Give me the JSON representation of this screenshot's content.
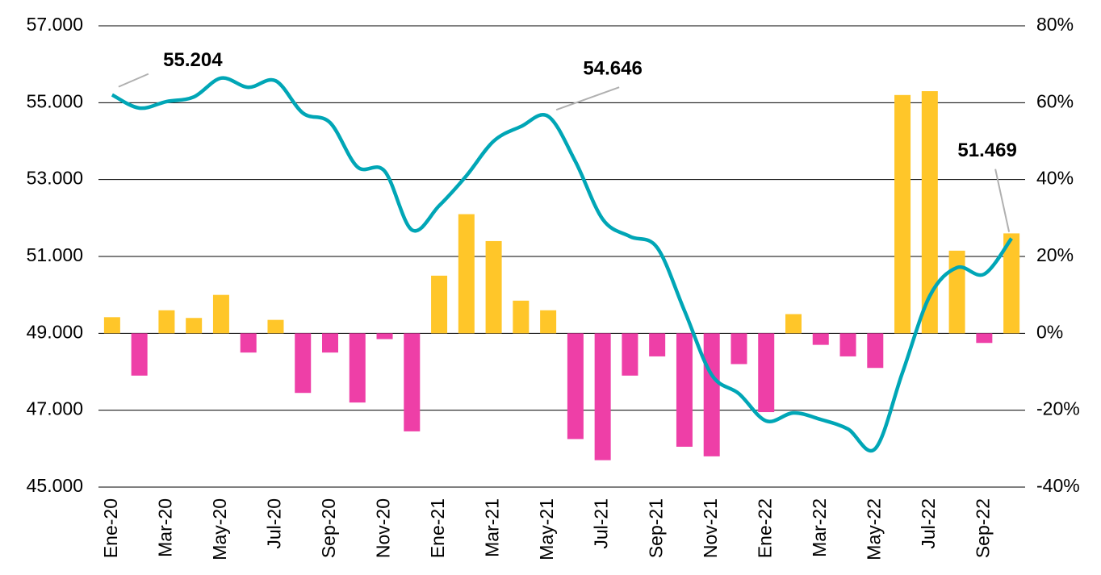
{
  "chart_data": {
    "type": "bar-line",
    "categories": [
      "Ene-20",
      null,
      "Mar-20",
      null,
      "May-20",
      null,
      "Jul-20",
      null,
      "Sep-20",
      null,
      "Nov-20",
      null,
      "Ene-21",
      null,
      "Mar-21",
      null,
      "May-21",
      null,
      "Jul-21",
      null,
      "Sep-21",
      null,
      "Nov-21",
      null,
      "Ene-22",
      null,
      "Mar-22",
      null,
      "May-22",
      null,
      "Jul-22",
      null,
      "Sep-22",
      null
    ],
    "series": [
      {
        "type": "bar",
        "axis": "y2",
        "positive_color": "#FFC629",
        "negative_color": "#EE3FA7",
        "values": [
          4.2,
          -11,
          6,
          4,
          10,
          -5,
          3.5,
          -15.5,
          -5,
          -18,
          -1.5,
          -25.5,
          15,
          31,
          24,
          8.5,
          6,
          -27.5,
          -33,
          -11,
          -6,
          -29.5,
          -32,
          -8,
          -20.5,
          5,
          -3,
          -6,
          -9,
          62,
          63,
          21.5,
          -2.5,
          26
        ]
      },
      {
        "type": "line",
        "axis": "y",
        "color": "#00A6B6",
        "values": [
          55204,
          54860,
          55030,
          55150,
          55640,
          55400,
          55570,
          54730,
          54480,
          53330,
          53220,
          51690,
          52320,
          53100,
          54000,
          54380,
          54646,
          53470,
          51970,
          51520,
          51230,
          49590,
          47920,
          47430,
          46720,
          46930,
          46760,
          46510,
          46000,
          47980,
          49970,
          50710,
          50540,
          51469
        ],
        "value_labels": [
          "55.204",
          null,
          null,
          null,
          null,
          null,
          null,
          null,
          null,
          null,
          null,
          null,
          null,
          null,
          null,
          null,
          "54.646",
          null,
          null,
          null,
          null,
          null,
          null,
          null,
          null,
          null,
          null,
          null,
          null,
          null,
          null,
          null,
          null,
          "51.469"
        ]
      }
    ],
    "ylim": [
      45000,
      57000
    ],
    "yticks": [
      {
        "value": 45000,
        "label": "45.000"
      },
      {
        "value": 47000,
        "label": "47.000"
      },
      {
        "value": 49000,
        "label": "49.000"
      },
      {
        "value": 51000,
        "label": "51.000"
      },
      {
        "value": 53000,
        "label": "53.000"
      },
      {
        "value": 55000,
        "label": "55.000"
      },
      {
        "value": 57000,
        "label": "57.000"
      }
    ],
    "y2lim": [
      -40,
      80
    ],
    "y2ticks": [
      {
        "value": -40,
        "label": "-40%"
      },
      {
        "value": -20,
        "label": "-20%"
      },
      {
        "value": 0,
        "label": "0%"
      },
      {
        "value": 20,
        "label": "20%"
      },
      {
        "value": 40,
        "label": "40%"
      },
      {
        "value": 60,
        "label": "60%"
      },
      {
        "value": 80,
        "label": "80%"
      }
    ],
    "grid": true
  }
}
